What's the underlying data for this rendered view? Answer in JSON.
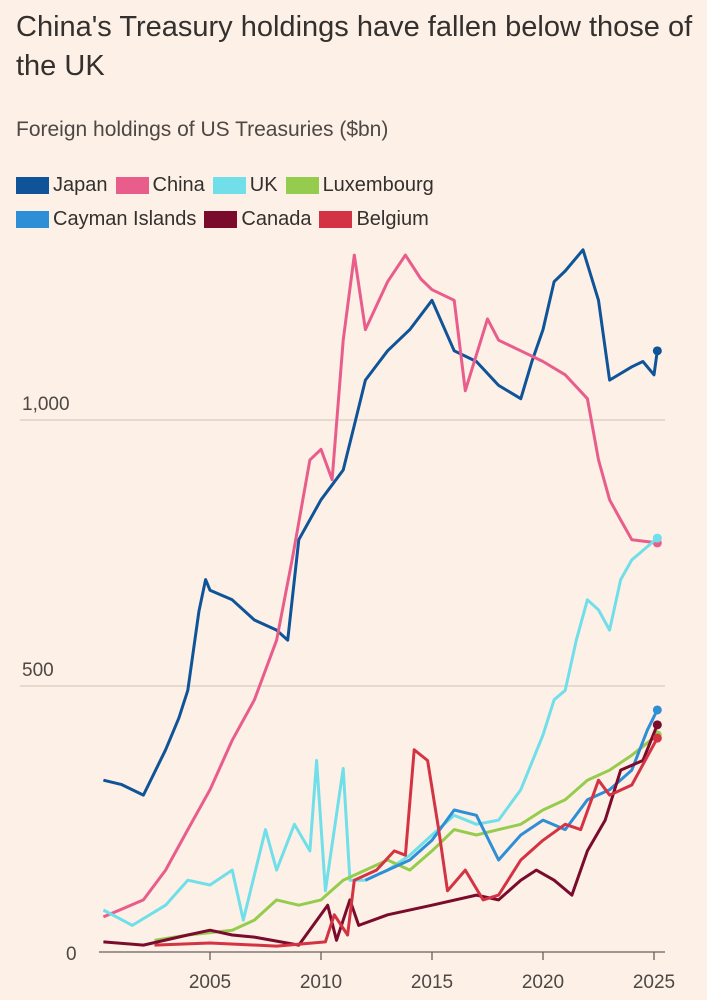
{
  "chart_data": {
    "type": "line",
    "title": "China's Treasury holdings have fallen below those of the UK",
    "subtitle": "Foreign holdings of US Treasuries ($bn)",
    "xlabel": "",
    "ylabel": "",
    "xlim": [
      2000,
      2025.5
    ],
    "ylim": [
      0,
      1400
    ],
    "yticks": [
      {
        "v": 0,
        "label": "0"
      },
      {
        "v": 500,
        "label": "500"
      },
      {
        "v": 1000,
        "label": "1,000"
      }
    ],
    "xticks": [
      {
        "v": 2005,
        "label": "2005"
      },
      {
        "v": 2010,
        "label": "2010"
      },
      {
        "v": 2015,
        "label": "2015"
      },
      {
        "v": 2020,
        "label": "2020"
      },
      {
        "v": 2025,
        "label": "2025"
      }
    ],
    "grid": true,
    "legend_position": "top-left",
    "series": [
      {
        "name": "Japan",
        "color": "#0f5499",
        "points": [
          [
            2000.2,
            323
          ],
          [
            2001,
            315
          ],
          [
            2002,
            295
          ],
          [
            2003,
            380
          ],
          [
            2003.6,
            440
          ],
          [
            2004,
            492
          ],
          [
            2004.5,
            640
          ],
          [
            2004.8,
            700
          ],
          [
            2005,
            680
          ],
          [
            2006,
            662
          ],
          [
            2007,
            624
          ],
          [
            2008,
            605
          ],
          [
            2008.5,
            586
          ],
          [
            2009,
            775
          ],
          [
            2010,
            850
          ],
          [
            2011,
            906
          ],
          [
            2011.5,
            990
          ],
          [
            2012,
            1075
          ],
          [
            2013,
            1130
          ],
          [
            2014,
            1170
          ],
          [
            2015,
            1225
          ],
          [
            2016,
            1130
          ],
          [
            2017,
            1110
          ],
          [
            2018,
            1065
          ],
          [
            2019,
            1040
          ],
          [
            2019.5,
            1110
          ],
          [
            2020,
            1170
          ],
          [
            2020.5,
            1260
          ],
          [
            2021,
            1280
          ],
          [
            2021.8,
            1320
          ],
          [
            2022.5,
            1225
          ],
          [
            2023,
            1075
          ],
          [
            2024,
            1100
          ],
          [
            2024.5,
            1110
          ],
          [
            2025,
            1085
          ],
          [
            2025.15,
            1130
          ]
        ]
      },
      {
        "name": "China",
        "color": "#e95d8c",
        "points": [
          [
            2000.2,
            66
          ],
          [
            2002,
            98
          ],
          [
            2003,
            154
          ],
          [
            2004,
            230
          ],
          [
            2005,
            305
          ],
          [
            2006,
            398
          ],
          [
            2007,
            474
          ],
          [
            2008,
            586
          ],
          [
            2008.7,
            737
          ],
          [
            2009.5,
            925
          ],
          [
            2010,
            945
          ],
          [
            2010.5,
            888
          ],
          [
            2011,
            1150
          ],
          [
            2011.5,
            1310
          ],
          [
            2012,
            1170
          ],
          [
            2013,
            1260
          ],
          [
            2013.8,
            1310
          ],
          [
            2014.5,
            1265
          ],
          [
            2015,
            1245
          ],
          [
            2016,
            1225
          ],
          [
            2016.5,
            1055
          ],
          [
            2017.5,
            1190
          ],
          [
            2018,
            1150
          ],
          [
            2019,
            1130
          ],
          [
            2020,
            1110
          ],
          [
            2021,
            1085
          ],
          [
            2022,
            1040
          ],
          [
            2022.5,
            925
          ],
          [
            2023,
            850
          ],
          [
            2023.5,
            812
          ],
          [
            2024,
            775
          ],
          [
            2025.15,
            769
          ]
        ]
      },
      {
        "name": "UK",
        "color": "#70dfe9",
        "points": [
          [
            2000.2,
            79
          ],
          [
            2001.5,
            50
          ],
          [
            2003,
            88
          ],
          [
            2004,
            135
          ],
          [
            2005,
            126
          ],
          [
            2006,
            154
          ],
          [
            2006.5,
            60
          ],
          [
            2007.5,
            230
          ],
          [
            2008,
            154
          ],
          [
            2008.8,
            240
          ],
          [
            2009.5,
            190
          ],
          [
            2009.8,
            360
          ],
          [
            2010.2,
            115
          ],
          [
            2011,
            345
          ],
          [
            2011.3,
            135
          ],
          [
            2012,
            135
          ],
          [
            2013,
            154
          ],
          [
            2014,
            182
          ],
          [
            2015,
            220
          ],
          [
            2016,
            257
          ],
          [
            2017,
            240
          ],
          [
            2018,
            248
          ],
          [
            2019,
            305
          ],
          [
            2020,
            408
          ],
          [
            2020.5,
            474
          ],
          [
            2021,
            492
          ],
          [
            2021.5,
            586
          ],
          [
            2022,
            662
          ],
          [
            2022.5,
            643
          ],
          [
            2023,
            605
          ],
          [
            2023.5,
            700
          ],
          [
            2024,
            737
          ],
          [
            2025.15,
            778
          ]
        ]
      },
      {
        "name": "Luxembourg",
        "color": "#96cc4e",
        "points": [
          [
            2002.5,
            22
          ],
          [
            2004,
            32
          ],
          [
            2006,
            41
          ],
          [
            2007,
            60
          ],
          [
            2008,
            98
          ],
          [
            2009,
            88
          ],
          [
            2010,
            98
          ],
          [
            2011,
            135
          ],
          [
            2012,
            154
          ],
          [
            2013,
            173
          ],
          [
            2014,
            154
          ],
          [
            2015,
            190
          ],
          [
            2016,
            230
          ],
          [
            2017,
            220
          ],
          [
            2018,
            230
          ],
          [
            2019,
            240
          ],
          [
            2020,
            267
          ],
          [
            2021,
            286
          ],
          [
            2022,
            323
          ],
          [
            2023,
            342
          ],
          [
            2024,
            370
          ],
          [
            2025.15,
            408
          ]
        ]
      },
      {
        "name": "Cayman Islands",
        "color": "#2e8fd6",
        "points": [
          [
            2012,
            135
          ],
          [
            2013,
            154
          ],
          [
            2014,
            173
          ],
          [
            2015,
            210
          ],
          [
            2016,
            267
          ],
          [
            2017,
            257
          ],
          [
            2018,
            173
          ],
          [
            2019,
            220
          ],
          [
            2020,
            248
          ],
          [
            2021,
            230
          ],
          [
            2022,
            286
          ],
          [
            2023,
            305
          ],
          [
            2024,
            342
          ],
          [
            2024.7,
            417
          ],
          [
            2025.15,
            455
          ]
        ]
      },
      {
        "name": "Canada",
        "color": "#7a0b2c",
        "points": [
          [
            2000.2,
            19
          ],
          [
            2002,
            13
          ],
          [
            2004,
            32
          ],
          [
            2005,
            41
          ],
          [
            2006,
            32
          ],
          [
            2007,
            28
          ],
          [
            2009,
            13
          ],
          [
            2010.3,
            88
          ],
          [
            2010.7,
            22
          ],
          [
            2011.3,
            98
          ],
          [
            2011.7,
            50
          ],
          [
            2013,
            70
          ],
          [
            2015,
            88
          ],
          [
            2017,
            107
          ],
          [
            2018,
            98
          ],
          [
            2019,
            135
          ],
          [
            2019.7,
            154
          ],
          [
            2020.5,
            135
          ],
          [
            2021.3,
            107
          ],
          [
            2022,
            190
          ],
          [
            2022.8,
            248
          ],
          [
            2023.5,
            342
          ],
          [
            2024.5,
            360
          ],
          [
            2025.15,
            427
          ]
        ]
      },
      {
        "name": "Belgium",
        "color": "#d43343",
        "points": [
          [
            2002.5,
            13
          ],
          [
            2005,
            17
          ],
          [
            2008,
            11
          ],
          [
            2010.2,
            19
          ],
          [
            2010.6,
            70
          ],
          [
            2011.2,
            32
          ],
          [
            2011.5,
            135
          ],
          [
            2012.5,
            154
          ],
          [
            2013.3,
            190
          ],
          [
            2013.8,
            182
          ],
          [
            2014.2,
            380
          ],
          [
            2014.8,
            360
          ],
          [
            2015.3,
            230
          ],
          [
            2015.7,
            115
          ],
          [
            2016.5,
            154
          ],
          [
            2017.3,
            98
          ],
          [
            2018,
            107
          ],
          [
            2019,
            173
          ],
          [
            2020,
            210
          ],
          [
            2021,
            240
          ],
          [
            2021.7,
            230
          ],
          [
            2022.5,
            323
          ],
          [
            2023,
            295
          ],
          [
            2024,
            314
          ],
          [
            2025.15,
            402
          ]
        ]
      }
    ]
  }
}
